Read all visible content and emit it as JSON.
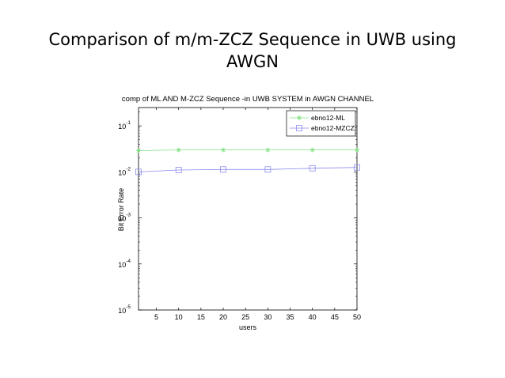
{
  "slide": {
    "title_line1": "Comparison of  m/m-ZCZ Sequence in UWB using",
    "title_line2": "AWGN"
  },
  "chart_data": {
    "type": "line",
    "title": "comp of ML AND M-ZCZ Sequence -in UWB SYSTEM in AWGN CHANNEL",
    "xlabel": "users",
    "ylabel": "Bit Error Rate",
    "xlim": [
      1,
      50
    ],
    "ylim": [
      1e-05,
      0.3
    ],
    "yscale": "log",
    "xticks": [
      5,
      10,
      15,
      20,
      25,
      30,
      35,
      40,
      45,
      50
    ],
    "yticks": [
      {
        "value": 1e-05,
        "base": "10",
        "exp": "-5"
      },
      {
        "value": 0.0001,
        "base": "10",
        "exp": "-4"
      },
      {
        "value": 0.001,
        "base": "10",
        "exp": "-3"
      },
      {
        "value": 0.01,
        "base": "10",
        "exp": "-2"
      },
      {
        "value": 0.1,
        "base": "10",
        "exp": "-1"
      }
    ],
    "grid": false,
    "legend_position": "top-right",
    "series": [
      {
        "name": "ebno12-ML",
        "color": "#7fe07f",
        "marker": "asterisk",
        "x": [
          1,
          10,
          20,
          30,
          40,
          50
        ],
        "y": [
          0.029,
          0.03,
          0.03,
          0.03,
          0.03,
          0.03
        ]
      },
      {
        "name": "ebno12-MZCZ",
        "color": "#8c8cf0",
        "marker": "square",
        "x": [
          1,
          10,
          20,
          30,
          40,
          50
        ],
        "y": [
          0.01,
          0.011,
          0.0113,
          0.0113,
          0.012,
          0.0125
        ]
      }
    ]
  }
}
